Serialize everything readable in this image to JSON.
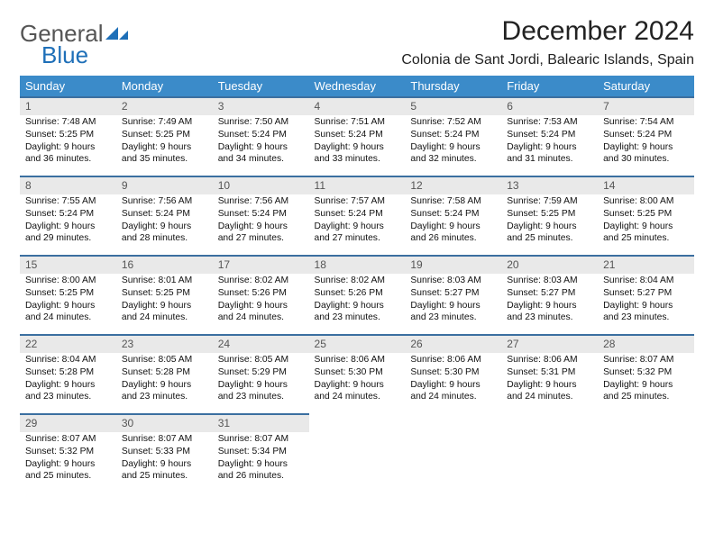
{
  "brand": {
    "word1": "General",
    "word2": "Blue",
    "color_primary": "#1e6fb8",
    "color_muted": "#555"
  },
  "title": "December 2024",
  "location": "Colonia de Sant Jordi, Balearic Islands, Spain",
  "header_bg": "#3b8bc9",
  "row_border": "#3b6fa0",
  "daynum_bg": "#e9e9e9",
  "weekdays": [
    "Sunday",
    "Monday",
    "Tuesday",
    "Wednesday",
    "Thursday",
    "Friday",
    "Saturday"
  ],
  "weeks": [
    [
      {
        "n": "1",
        "sr": "7:48 AM",
        "ss": "5:25 PM",
        "dl": "9 hours and 36 minutes."
      },
      {
        "n": "2",
        "sr": "7:49 AM",
        "ss": "5:25 PM",
        "dl": "9 hours and 35 minutes."
      },
      {
        "n": "3",
        "sr": "7:50 AM",
        "ss": "5:24 PM",
        "dl": "9 hours and 34 minutes."
      },
      {
        "n": "4",
        "sr": "7:51 AM",
        "ss": "5:24 PM",
        "dl": "9 hours and 33 minutes."
      },
      {
        "n": "5",
        "sr": "7:52 AM",
        "ss": "5:24 PM",
        "dl": "9 hours and 32 minutes."
      },
      {
        "n": "6",
        "sr": "7:53 AM",
        "ss": "5:24 PM",
        "dl": "9 hours and 31 minutes."
      },
      {
        "n": "7",
        "sr": "7:54 AM",
        "ss": "5:24 PM",
        "dl": "9 hours and 30 minutes."
      }
    ],
    [
      {
        "n": "8",
        "sr": "7:55 AM",
        "ss": "5:24 PM",
        "dl": "9 hours and 29 minutes."
      },
      {
        "n": "9",
        "sr": "7:56 AM",
        "ss": "5:24 PM",
        "dl": "9 hours and 28 minutes."
      },
      {
        "n": "10",
        "sr": "7:56 AM",
        "ss": "5:24 PM",
        "dl": "9 hours and 27 minutes."
      },
      {
        "n": "11",
        "sr": "7:57 AM",
        "ss": "5:24 PM",
        "dl": "9 hours and 27 minutes."
      },
      {
        "n": "12",
        "sr": "7:58 AM",
        "ss": "5:24 PM",
        "dl": "9 hours and 26 minutes."
      },
      {
        "n": "13",
        "sr": "7:59 AM",
        "ss": "5:25 PM",
        "dl": "9 hours and 25 minutes."
      },
      {
        "n": "14",
        "sr": "8:00 AM",
        "ss": "5:25 PM",
        "dl": "9 hours and 25 minutes."
      }
    ],
    [
      {
        "n": "15",
        "sr": "8:00 AM",
        "ss": "5:25 PM",
        "dl": "9 hours and 24 minutes."
      },
      {
        "n": "16",
        "sr": "8:01 AM",
        "ss": "5:25 PM",
        "dl": "9 hours and 24 minutes."
      },
      {
        "n": "17",
        "sr": "8:02 AM",
        "ss": "5:26 PM",
        "dl": "9 hours and 24 minutes."
      },
      {
        "n": "18",
        "sr": "8:02 AM",
        "ss": "5:26 PM",
        "dl": "9 hours and 23 minutes."
      },
      {
        "n": "19",
        "sr": "8:03 AM",
        "ss": "5:27 PM",
        "dl": "9 hours and 23 minutes."
      },
      {
        "n": "20",
        "sr": "8:03 AM",
        "ss": "5:27 PM",
        "dl": "9 hours and 23 minutes."
      },
      {
        "n": "21",
        "sr": "8:04 AM",
        "ss": "5:27 PM",
        "dl": "9 hours and 23 minutes."
      }
    ],
    [
      {
        "n": "22",
        "sr": "8:04 AM",
        "ss": "5:28 PM",
        "dl": "9 hours and 23 minutes."
      },
      {
        "n": "23",
        "sr": "8:05 AM",
        "ss": "5:28 PM",
        "dl": "9 hours and 23 minutes."
      },
      {
        "n": "24",
        "sr": "8:05 AM",
        "ss": "5:29 PM",
        "dl": "9 hours and 23 minutes."
      },
      {
        "n": "25",
        "sr": "8:06 AM",
        "ss": "5:30 PM",
        "dl": "9 hours and 24 minutes."
      },
      {
        "n": "26",
        "sr": "8:06 AM",
        "ss": "5:30 PM",
        "dl": "9 hours and 24 minutes."
      },
      {
        "n": "27",
        "sr": "8:06 AM",
        "ss": "5:31 PM",
        "dl": "9 hours and 24 minutes."
      },
      {
        "n": "28",
        "sr": "8:07 AM",
        "ss": "5:32 PM",
        "dl": "9 hours and 25 minutes."
      }
    ],
    [
      {
        "n": "29",
        "sr": "8:07 AM",
        "ss": "5:32 PM",
        "dl": "9 hours and 25 minutes."
      },
      {
        "n": "30",
        "sr": "8:07 AM",
        "ss": "5:33 PM",
        "dl": "9 hours and 25 minutes."
      },
      {
        "n": "31",
        "sr": "8:07 AM",
        "ss": "5:34 PM",
        "dl": "9 hours and 26 minutes."
      },
      null,
      null,
      null,
      null
    ]
  ],
  "labels": {
    "sunrise": "Sunrise:",
    "sunset": "Sunset:",
    "daylight": "Daylight:"
  }
}
